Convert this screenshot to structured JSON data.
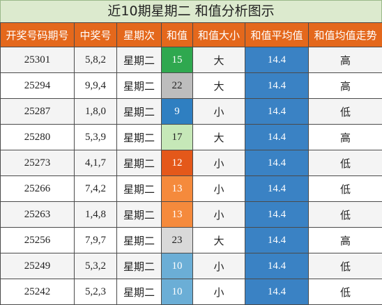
{
  "title": "近10期星期二 和值分析图示",
  "columns": [
    "开奖号码期号",
    "中奖号",
    "星期次",
    "和值",
    "和值大小",
    "和值平均值",
    "和值均值走势"
  ],
  "colors": {
    "header_bg": "#e4681c",
    "avg_bg": "#3a82c4",
    "sum_15": "#2fa84f",
    "sum_22": "#bdbdbd",
    "sum_9": "#2f7fc1",
    "sum_17": "#c6e8b8",
    "sum_12": "#e4581a",
    "sum_13": "#f58a3c",
    "sum_23": "#d9d9d9",
    "sum_10": "#6baed6"
  },
  "rows": [
    {
      "issue": "25301",
      "numbers": "5,8,2",
      "weekday": "星期二",
      "sum": "15",
      "sum_bg": "#2fa84f",
      "sum_fg": "#ffffff",
      "size": "大",
      "avg": "14.4",
      "trend": "高"
    },
    {
      "issue": "25294",
      "numbers": "9,9,4",
      "weekday": "星期二",
      "sum": "22",
      "sum_bg": "#bdbdbd",
      "sum_fg": "#222222",
      "size": "大",
      "avg": "14.4",
      "trend": "高"
    },
    {
      "issue": "25287",
      "numbers": "1,8,0",
      "weekday": "星期二",
      "sum": "9",
      "sum_bg": "#2f7fc1",
      "sum_fg": "#ffffff",
      "size": "小",
      "avg": "14.4",
      "trend": "低"
    },
    {
      "issue": "25280",
      "numbers": "5,3,9",
      "weekday": "星期二",
      "sum": "17",
      "sum_bg": "#c6e8b8",
      "sum_fg": "#222222",
      "size": "大",
      "avg": "14.4",
      "trend": "高"
    },
    {
      "issue": "25273",
      "numbers": "4,1,7",
      "weekday": "星期二",
      "sum": "12",
      "sum_bg": "#e4581a",
      "sum_fg": "#ffffff",
      "size": "小",
      "avg": "14.4",
      "trend": "低"
    },
    {
      "issue": "25266",
      "numbers": "7,4,2",
      "weekday": "星期二",
      "sum": "13",
      "sum_bg": "#f58a3c",
      "sum_fg": "#ffffff",
      "size": "小",
      "avg": "14.4",
      "trend": "低"
    },
    {
      "issue": "25263",
      "numbers": "1,4,8",
      "weekday": "星期二",
      "sum": "13",
      "sum_bg": "#f58a3c",
      "sum_fg": "#ffffff",
      "size": "小",
      "avg": "14.4",
      "trend": "低"
    },
    {
      "issue": "25256",
      "numbers": "7,9,7",
      "weekday": "星期二",
      "sum": "23",
      "sum_bg": "#d9d9d9",
      "sum_fg": "#222222",
      "size": "大",
      "avg": "14.4",
      "trend": "高"
    },
    {
      "issue": "25249",
      "numbers": "5,3,2",
      "weekday": "星期二",
      "sum": "10",
      "sum_bg": "#6baed6",
      "sum_fg": "#ffffff",
      "size": "小",
      "avg": "14.4",
      "trend": "低"
    },
    {
      "issue": "25242",
      "numbers": "5,2,3",
      "weekday": "星期二",
      "sum": "10",
      "sum_bg": "#6baed6",
      "sum_fg": "#ffffff",
      "size": "小",
      "avg": "14.4",
      "trend": "低"
    }
  ]
}
